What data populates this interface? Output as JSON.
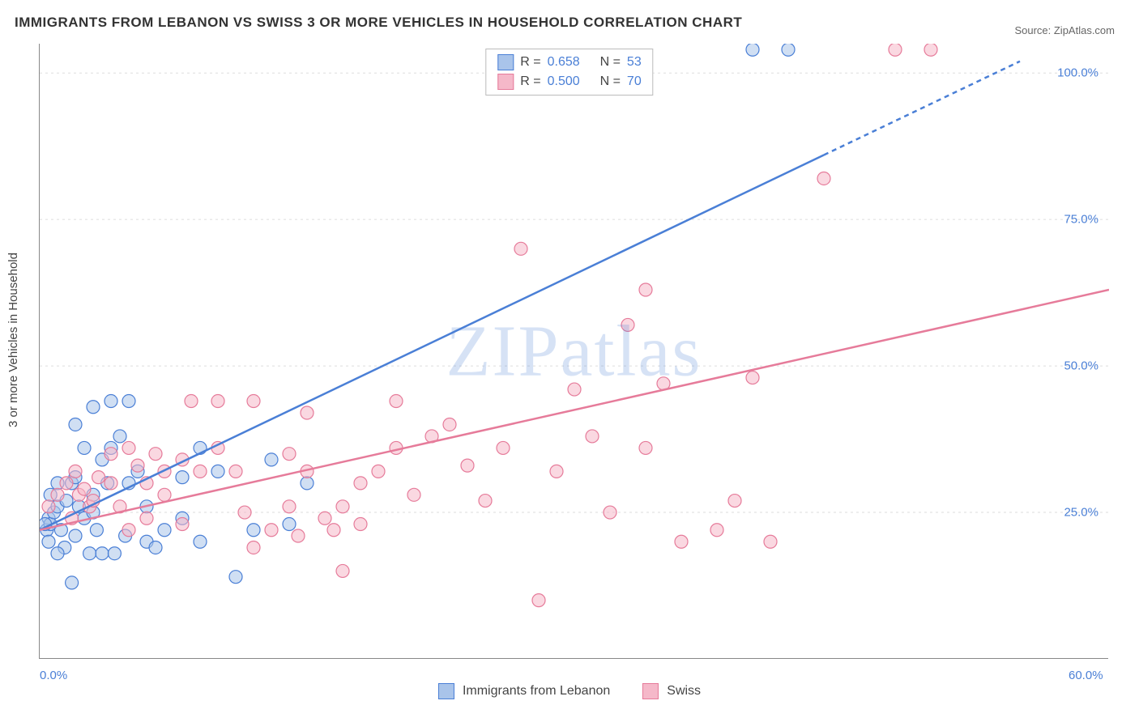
{
  "title": "IMMIGRANTS FROM LEBANON VS SWISS 3 OR MORE VEHICLES IN HOUSEHOLD CORRELATION CHART",
  "source_label": "Source: ",
  "source_name": "ZipAtlas.com",
  "ylabel": "3 or more Vehicles in Household",
  "watermark": "ZIPatlas",
  "chart": {
    "type": "scatter",
    "background_color": "#ffffff",
    "grid_color": "#dddddd",
    "axis_color": "#888888",
    "label_color": "#4a7fd6",
    "xlim": [
      0,
      60
    ],
    "ylim": [
      0,
      105
    ],
    "xticks": [
      {
        "v": 0,
        "l": "0.0%"
      },
      {
        "v": 60,
        "l": "60.0%"
      }
    ],
    "yticks": [
      {
        "v": 25,
        "l": "25.0%"
      },
      {
        "v": 50,
        "l": "50.0%"
      },
      {
        "v": 75,
        "l": "75.0%"
      },
      {
        "v": 100,
        "l": "100.0%"
      }
    ],
    "series": [
      {
        "name": "Immigrants from Lebanon",
        "color": "#4a7fd6",
        "fill": "#a9c4ea",
        "fill_opacity": 0.55,
        "marker_radius": 8,
        "R": "0.658",
        "N": "53",
        "regression": {
          "x1": 0,
          "y1": 22,
          "x2_solid": 44,
          "y2_solid": 86,
          "x2": 55,
          "y2": 102
        },
        "points": [
          [
            0.4,
            22
          ],
          [
            0.5,
            24
          ],
          [
            0.6,
            23
          ],
          [
            0.8,
            25
          ],
          [
            0.5,
            20
          ],
          [
            1,
            26
          ],
          [
            1,
            30
          ],
          [
            0.3,
            23
          ],
          [
            0.6,
            28
          ],
          [
            1.2,
            22
          ],
          [
            1.4,
            19
          ],
          [
            1.5,
            27
          ],
          [
            1.8,
            30
          ],
          [
            1,
            18
          ],
          [
            2,
            31
          ],
          [
            2,
            21
          ],
          [
            2.2,
            26
          ],
          [
            2.5,
            24
          ],
          [
            2.5,
            36
          ],
          [
            3,
            25
          ],
          [
            3,
            28
          ],
          [
            3.5,
            34
          ],
          [
            3.2,
            22
          ],
          [
            3.8,
            30
          ],
          [
            3,
            43
          ],
          [
            4,
            36
          ],
          [
            4,
            44
          ],
          [
            4.5,
            38
          ],
          [
            5,
            44
          ],
          [
            5,
            30
          ],
          [
            5.5,
            32
          ],
          [
            6,
            26
          ],
          [
            6,
            20
          ],
          [
            7,
            22
          ],
          [
            8,
            24
          ],
          [
            8,
            31
          ],
          [
            9,
            20
          ],
          [
            9,
            36
          ],
          [
            10,
            32
          ],
          [
            11,
            14
          ],
          [
            12,
            22
          ],
          [
            13,
            34
          ],
          [
            14,
            23
          ],
          [
            15,
            30
          ],
          [
            1.8,
            13
          ],
          [
            2,
            40
          ],
          [
            2.8,
            18
          ],
          [
            3.5,
            18
          ],
          [
            4.2,
            18
          ],
          [
            4.8,
            21
          ],
          [
            6.5,
            19
          ],
          [
            40,
            104
          ],
          [
            42,
            104
          ]
        ]
      },
      {
        "name": "Swiss",
        "color": "#e67b9a",
        "fill": "#f5b8c9",
        "fill_opacity": 0.55,
        "marker_radius": 8,
        "R": "0.500",
        "N": "70",
        "regression": {
          "x1": 0,
          "y1": 22,
          "x2_solid": 60,
          "y2_solid": 63,
          "x2": 60,
          "y2": 63
        },
        "points": [
          [
            0.5,
            26
          ],
          [
            1,
            28
          ],
          [
            1.5,
            30
          ],
          [
            1.8,
            24
          ],
          [
            2,
            32
          ],
          [
            2.2,
            28
          ],
          [
            2.5,
            29
          ],
          [
            2.8,
            26
          ],
          [
            3,
            27
          ],
          [
            3.3,
            31
          ],
          [
            4,
            30
          ],
          [
            4,
            35
          ],
          [
            4.5,
            26
          ],
          [
            5,
            36
          ],
          [
            5.5,
            33
          ],
          [
            6,
            30
          ],
          [
            6.5,
            35
          ],
          [
            7,
            32
          ],
          [
            7,
            28
          ],
          [
            8,
            23
          ],
          [
            8,
            34
          ],
          [
            9,
            32
          ],
          [
            10,
            36
          ],
          [
            10,
            44
          ],
          [
            11,
            32
          ],
          [
            11.5,
            25
          ],
          [
            12,
            44
          ],
          [
            13,
            22
          ],
          [
            14,
            35
          ],
          [
            14,
            26
          ],
          [
            15,
            32
          ],
          [
            15,
            42
          ],
          [
            16,
            24
          ],
          [
            17,
            15
          ],
          [
            17,
            26
          ],
          [
            18,
            23
          ],
          [
            18,
            30
          ],
          [
            19,
            32
          ],
          [
            20,
            36
          ],
          [
            20,
            44
          ],
          [
            21,
            28
          ],
          [
            22,
            38
          ],
          [
            23,
            40
          ],
          [
            24,
            33
          ],
          [
            25,
            27
          ],
          [
            26,
            36
          ],
          [
            27,
            70
          ],
          [
            28,
            10
          ],
          [
            29,
            32
          ],
          [
            30,
            46
          ],
          [
            31,
            38
          ],
          [
            32,
            25
          ],
          [
            33,
            57
          ],
          [
            34,
            36
          ],
          [
            34,
            63
          ],
          [
            35,
            47
          ],
          [
            36,
            20
          ],
          [
            38,
            22
          ],
          [
            39,
            27
          ],
          [
            40,
            48
          ],
          [
            41,
            20
          ],
          [
            44,
            82
          ],
          [
            48,
            104
          ],
          [
            50,
            104
          ],
          [
            8.5,
            44
          ],
          [
            5,
            22
          ],
          [
            6,
            24
          ],
          [
            12,
            19
          ],
          [
            14.5,
            21
          ],
          [
            16.5,
            22
          ]
        ]
      }
    ]
  },
  "legend_top": {
    "r_label": "R =",
    "n_label": "N ="
  },
  "legend_bottom": {
    "series1": "Immigrants from Lebanon",
    "series2": "Swiss"
  }
}
